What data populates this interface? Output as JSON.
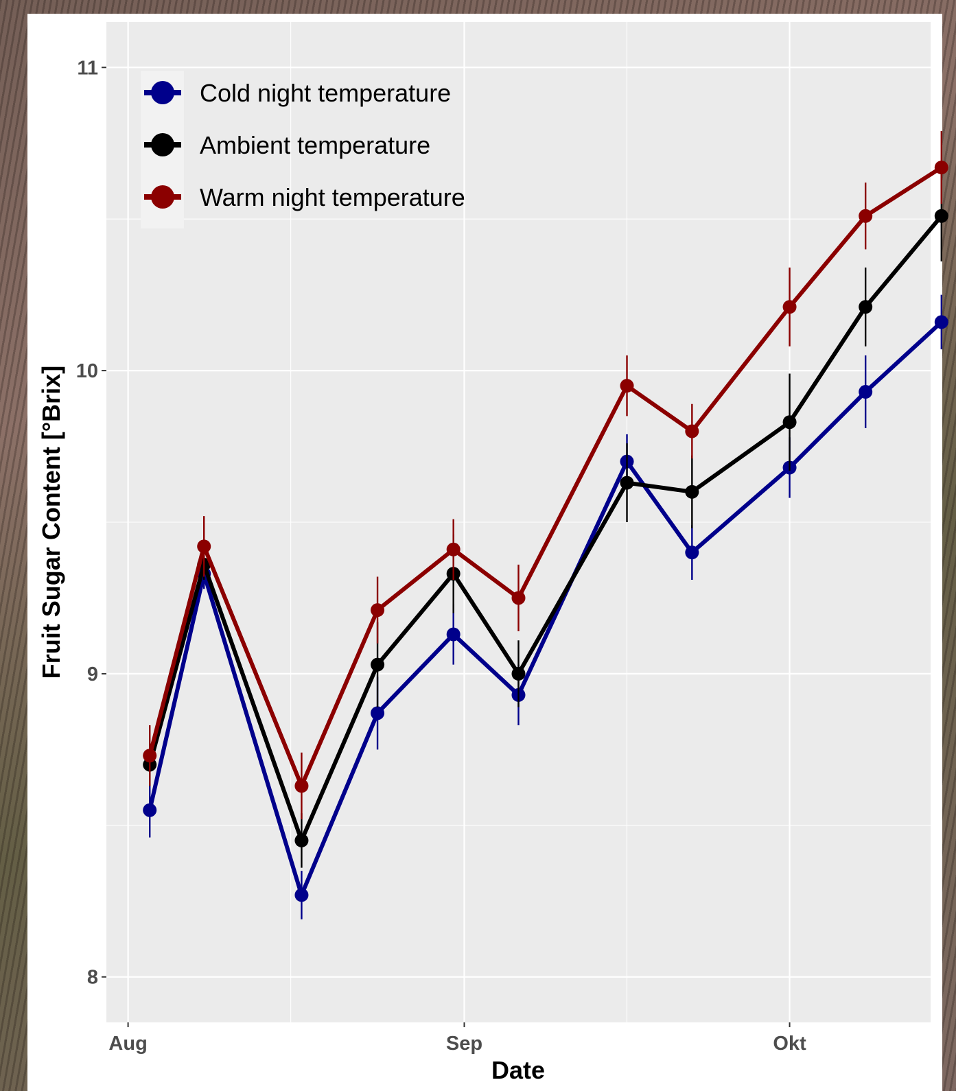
{
  "chart_data": {
    "type": "line",
    "xlabel": "Date",
    "ylabel": "Fruit Sugar Content [°Brix]",
    "x_ticks": [
      "Aug",
      "Sep",
      "Okt"
    ],
    "x_range": [
      "2024-07-30",
      "2024-10-14"
    ],
    "ylim": [
      7.85,
      11.15
    ],
    "y_ticks": [
      8,
      9,
      10,
      11
    ],
    "grid": true,
    "legend_position": "top-left",
    "x": [
      "2024-08-03",
      "2024-08-08",
      "2024-08-17",
      "2024-08-24",
      "2024-08-31",
      "2024-09-06",
      "2024-09-16",
      "2024-09-22",
      "2024-10-01",
      "2024-10-08",
      "2024-10-15"
    ],
    "series": [
      {
        "name": "Cold night temperature",
        "color": "#00008B",
        "values": [
          8.55,
          9.33,
          8.27,
          8.87,
          9.13,
          8.93,
          9.7,
          9.4,
          9.68,
          9.93,
          10.16
        ],
        "errors": [
          0.09,
          0.05,
          0.08,
          0.12,
          0.1,
          0.1,
          0.09,
          0.09,
          0.1,
          0.12,
          0.09
        ]
      },
      {
        "name": "Ambient temperature",
        "color": "#000000",
        "values": [
          8.7,
          9.36,
          8.45,
          9.03,
          9.33,
          9.0,
          9.63,
          9.6,
          9.83,
          10.21,
          10.51
        ],
        "errors": [
          0.07,
          0.05,
          0.09,
          0.14,
          0.13,
          0.11,
          0.13,
          0.12,
          0.16,
          0.13,
          0.15
        ]
      },
      {
        "name": "Warm night temperature",
        "color": "#8B0000",
        "values": [
          8.73,
          9.42,
          8.63,
          9.21,
          9.41,
          9.25,
          9.95,
          9.8,
          10.21,
          10.51,
          10.67
        ],
        "errors": [
          0.1,
          0.1,
          0.11,
          0.11,
          0.1,
          0.11,
          0.1,
          0.09,
          0.13,
          0.11,
          0.12
        ]
      }
    ]
  }
}
